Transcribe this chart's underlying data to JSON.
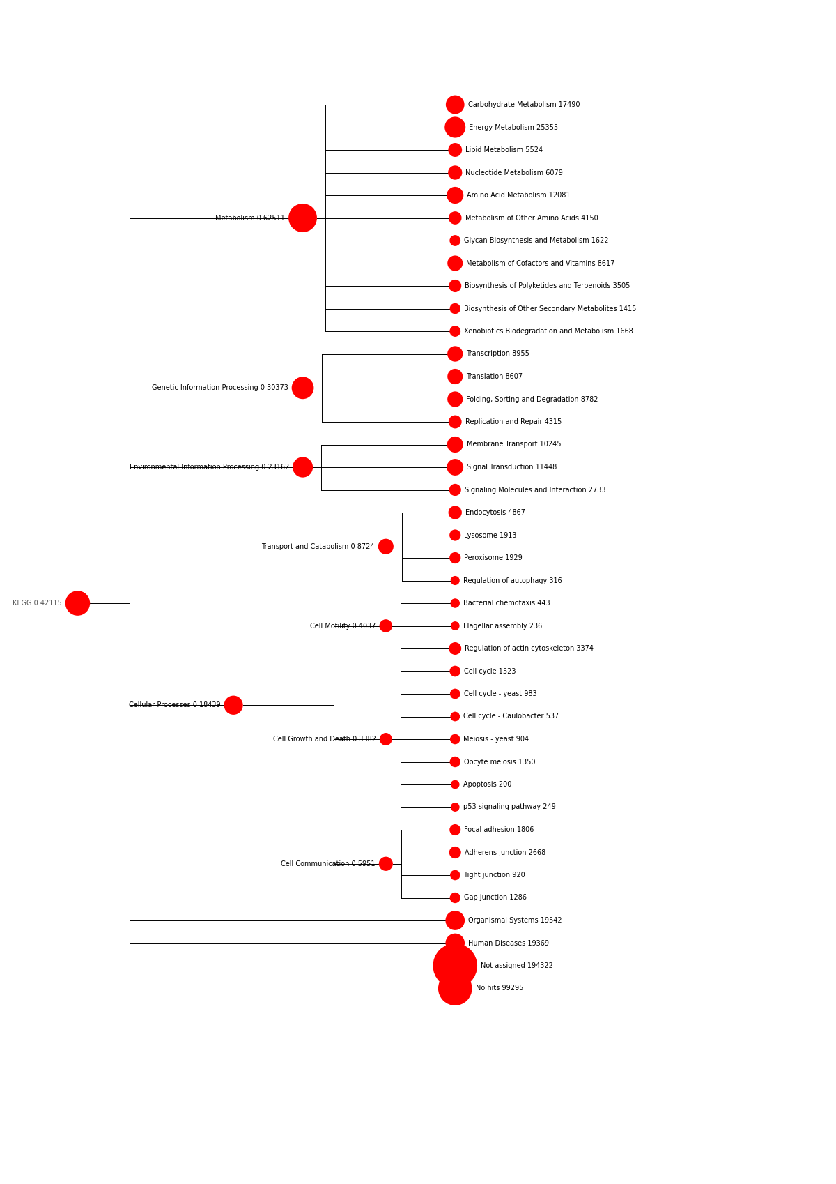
{
  "root": {
    "label": "KEGG 0 42115",
    "value": 42115
  },
  "groups": [
    {
      "label": "Metabolism 0 62511",
      "value": 62511,
      "level": 1,
      "leaves": [
        {
          "label": "Carbohydrate Metabolism 17490",
          "value": 17490
        },
        {
          "label": "Energy Metabolism 25355",
          "value": 25355
        },
        {
          "label": "Lipid Metabolism 5524",
          "value": 5524
        },
        {
          "label": "Nucleotide Metabolism 6079",
          "value": 6079
        },
        {
          "label": "Amino Acid Metabolism 12081",
          "value": 12081
        },
        {
          "label": "Metabolism of Other Amino Acids 4150",
          "value": 4150
        },
        {
          "label": "Glycan Biosynthesis and Metabolism 1622",
          "value": 1622
        },
        {
          "label": "Metabolism of Cofactors and Vitamins 8617",
          "value": 8617
        },
        {
          "label": "Biosynthesis of Polyketides and Terpenoids 3505",
          "value": 3505
        },
        {
          "label": "Biosynthesis of Other Secondary Metabolites 1415",
          "value": 1415
        },
        {
          "label": "Xenobiotics Biodegradation and Metabolism 1668",
          "value": 1668
        }
      ]
    },
    {
      "label": "Genetic Information Processing 0 30373",
      "value": 30373,
      "level": 1,
      "leaves": [
        {
          "label": "Transcription 8955",
          "value": 8955
        },
        {
          "label": "Translation 8607",
          "value": 8607
        },
        {
          "label": "Folding, Sorting and Degradation 8782",
          "value": 8782
        },
        {
          "label": "Replication and Repair 4315",
          "value": 4315
        }
      ]
    },
    {
      "label": "Environmental Information Processing 0 23162",
      "value": 23162,
      "level": 1,
      "leaves": [
        {
          "label": "Membrane Transport 10245",
          "value": 10245
        },
        {
          "label": "Signal Transduction 11448",
          "value": 11448
        },
        {
          "label": "Signaling Molecules and Interaction 2733",
          "value": 2733
        }
      ]
    },
    {
      "label": "Cellular Processes 0 18439",
      "value": 18439,
      "level": 1,
      "leaves": [],
      "subgroups": [
        {
          "label": "Transport and Catabolism 0 8724",
          "value": 8724,
          "leaves": [
            {
              "label": "Endocytosis 4867",
              "value": 4867
            },
            {
              "label": "Lysosome 1913",
              "value": 1913
            },
            {
              "label": "Peroxisome 1929",
              "value": 1929
            },
            {
              "label": "Regulation of autophagy 316",
              "value": 316
            }
          ]
        },
        {
          "label": "Cell Motility 0 4037",
          "value": 4037,
          "leaves": [
            {
              "label": "Bacterial chemotaxis 443",
              "value": 443
            },
            {
              "label": "Flagellar assembly 236",
              "value": 236
            },
            {
              "label": "Regulation of actin cytoskeleton 3374",
              "value": 3374
            }
          ]
        },
        {
          "label": "Cell Growth and Death 0 3382",
          "value": 3382,
          "leaves": [
            {
              "label": "Cell cycle 1523",
              "value": 1523
            },
            {
              "label": "Cell cycle - yeast 983",
              "value": 983
            },
            {
              "label": "Cell cycle - Caulobacter 537",
              "value": 537
            },
            {
              "label": "Meiosis - yeast 904",
              "value": 904
            },
            {
              "label": "Oocyte meiosis 1350",
              "value": 1350
            },
            {
              "label": "Apoptosis 200",
              "value": 200
            },
            {
              "label": "p53 signaling pathway 249",
              "value": 249
            }
          ]
        },
        {
          "label": "Cell Communication 0 5951",
          "value": 5951,
          "leaves": [
            {
              "label": "Focal adhesion 1806",
              "value": 1806
            },
            {
              "label": "Adherens junction 2668",
              "value": 2668
            },
            {
              "label": "Tight junction 920",
              "value": 920
            },
            {
              "label": "Gap junction 1286",
              "value": 1286
            }
          ]
        }
      ]
    },
    {
      "label": "Organismal Systems 19542",
      "value": 19542,
      "level": 1,
      "leaves": []
    },
    {
      "label": "Human Diseases 19369",
      "value": 19369,
      "level": 1,
      "leaves": []
    },
    {
      "label": "Not assigned 194322",
      "value": 194322,
      "level": 1,
      "leaves": []
    },
    {
      "label": "No hits 99295",
      "value": 99295,
      "level": 1,
      "leaves": []
    }
  ],
  "dot_color": "#FF0000",
  "line_color": "#000000",
  "background_color": "#FFFFFF",
  "fontsize": 7.0,
  "lw": 0.7
}
